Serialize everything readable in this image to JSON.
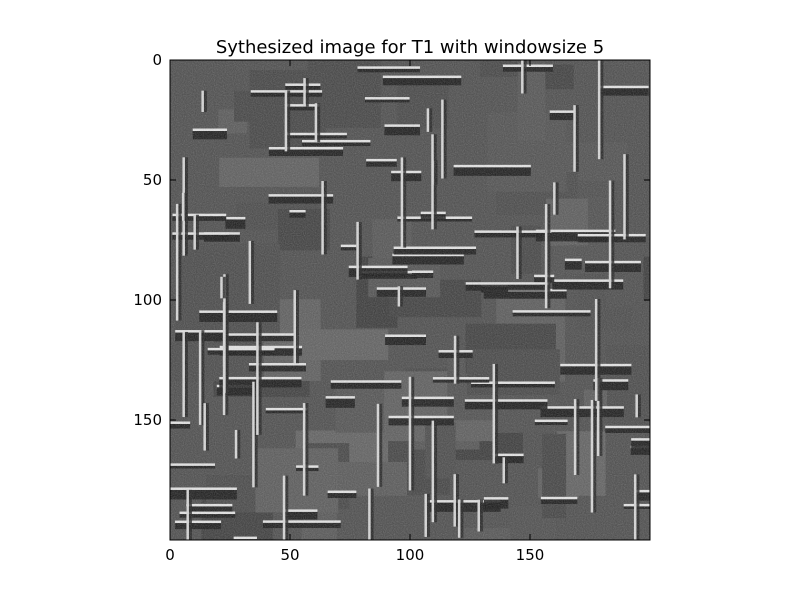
{
  "chart_data": {
    "type": "heatmap",
    "title": "Sythesized image for T1 with windowsize 5",
    "colormap": "gray",
    "image_size": [
      200,
      200
    ],
    "xlim": [
      0,
      200
    ],
    "ylim": [
      200,
      0
    ],
    "x_ticks": [
      0,
      50,
      100,
      150
    ],
    "y_ticks": [
      0,
      50,
      100,
      150
    ],
    "x_tick_labels": [
      "0",
      "50",
      "100",
      "150"
    ],
    "y_tick_labels": [
      "0",
      "50",
      "100",
      "150"
    ],
    "grid": false,
    "legend": "none"
  }
}
